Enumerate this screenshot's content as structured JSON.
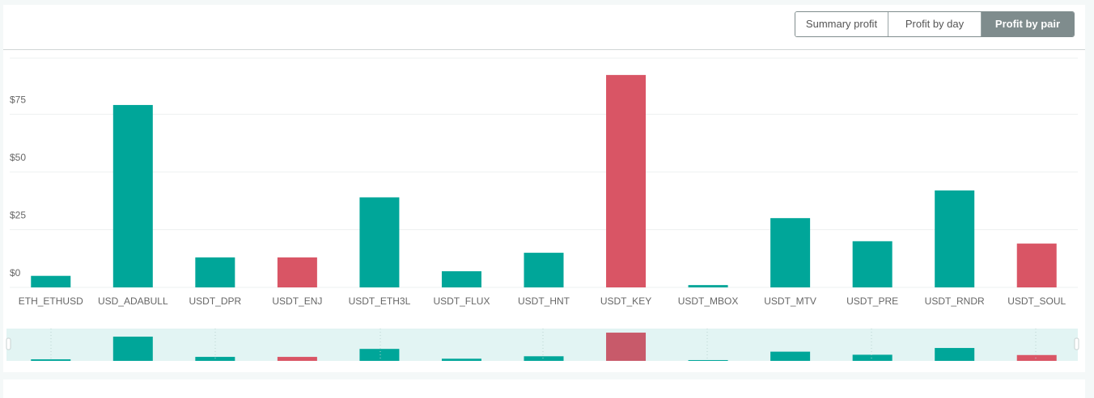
{
  "tabs": [
    {
      "label": "Summary profit",
      "active": false
    },
    {
      "label": "Profit by day",
      "active": false
    },
    {
      "label": "Profit by pair",
      "active": true
    }
  ],
  "colors": {
    "positive": "#00a699",
    "negative": "#d95565",
    "overview_bg": "#e2f4f3"
  },
  "chart_data": {
    "type": "bar",
    "title": "",
    "xlabel": "",
    "ylabel": "",
    "y_tick_labels": [
      "$0",
      "$25",
      "$50",
      "$75"
    ],
    "y_ticks": [
      0,
      25,
      50,
      75
    ],
    "categories": [
      "ETH_ETHUSD",
      "USD_ADABULL",
      "USDT_DPR",
      "USDT_ENJ",
      "USDT_ETH3L",
      "USDT_FLUX",
      "USDT_HNT",
      "USDT_KEY",
      "USDT_MBOX",
      "USDT_MTV",
      "USDT_PRE",
      "USDT_RNDR",
      "USDT_SOUL"
    ],
    "values": [
      5,
      79,
      13,
      -13,
      39,
      7,
      15,
      -92,
      1,
      30,
      20,
      42,
      -19
    ],
    "note_sign": "negative values are drawn as red bars with their magnitude upward",
    "grid": true,
    "has_overview_slider": true
  }
}
